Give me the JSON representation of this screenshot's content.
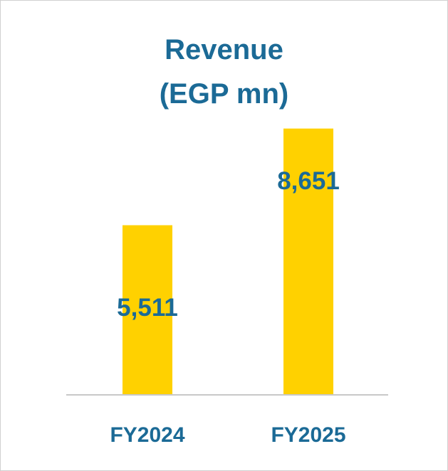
{
  "chart_data": {
    "type": "bar",
    "title_lines": [
      "Revenue",
      "(EGP mn)"
    ],
    "categories": [
      "FY2024",
      "FY2025"
    ],
    "values": [
      5511,
      8651
    ],
    "value_labels": [
      "5,511",
      "8,651"
    ],
    "xlabel": "",
    "ylabel": "",
    "ylim": [
      0,
      9360
    ],
    "grid": false,
    "legend": "none"
  },
  "colors": {
    "bar": "#ffd100",
    "text": "#1b6a96",
    "axis": "#c8c8c8"
  }
}
